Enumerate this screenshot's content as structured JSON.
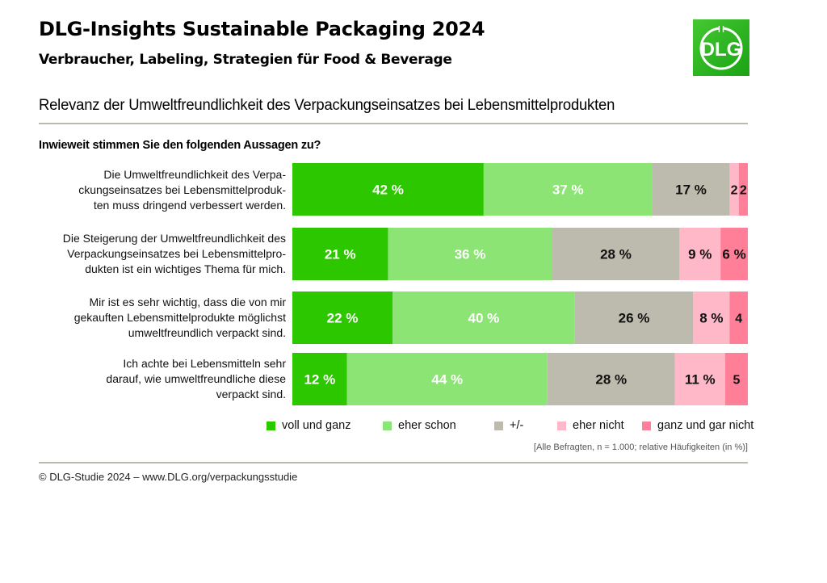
{
  "header": {
    "title": "DLG-Insights Sustainable Packaging 2024",
    "subtitle": "Verbraucher, Labeling, Strategien für Food & Beverage",
    "logo_text": "DLG"
  },
  "question": "Inwieweit stimmen Sie den folgenden Aussagen zu?",
  "note": "[Alle Befragten, n = 1.000; relative Häufigkeiten (in %)]",
  "footer": "© DLG-Studie 2024 – www.DLG.org/verpackungsstudie",
  "colors": {
    "voll_und_ganz": "#2dc700",
    "eher_schon": "#8be474",
    "neutral": "#bdbbad",
    "eher_nicht": "#ffb8c8",
    "ganz_und_gar_nicht": "#ff7f99",
    "logo": "#2db31e"
  },
  "rows": [
    {
      "label_lines": [
        "Die Umweltfreundlichkeit des Verpa-",
        "ckungseinsatzes bei Lebensmittelproduk-",
        "ten muss dringend verbessert werden."
      ]
    },
    {
      "label_lines": [
        "Die Steigerung der Umweltfreundlichkeit des",
        "Verpackungseinsatzes bei Lebensmittelpro-",
        "dukten ist ein wichtiges Thema für mich."
      ]
    },
    {
      "label_lines": [
        "Mir ist es sehr wichtig, dass die von mir",
        "gekauften Lebensmittelprodukte möglichst",
        "umweltfreundlich verpackt sind."
      ]
    },
    {
      "label_lines": [
        "Ich achte bei Lebensmitteln sehr",
        "darauf, wie umweltfreundliche diese",
        "verpackt sind."
      ]
    }
  ],
  "chart_data": {
    "type": "bar",
    "orientation": "horizontal-stacked-100",
    "title": "Relevanz der Umweltfreundlichkeit des Verpackungseinsatzes bei Lebensmittelprodukten",
    "xlabel": "",
    "ylabel": "",
    "xlim": [
      0,
      100
    ],
    "grid": false,
    "legend_position": "bottom",
    "categories": [
      "Die Umweltfreundlichkeit des Verpackungseinsatzes bei Lebensmittelprodukten muss dringend verbessert werden.",
      "Die Steigerung der Umweltfreundlichkeit des Verpackungseinsatzes bei Lebensmittelprodukten ist ein wichtiges Thema für mich.",
      "Mir ist es sehr wichtig, dass die von mir gekauften Lebensmittelprodukte möglichst umweltfreundlich verpackt sind.",
      "Ich achte bei Lebensmitteln sehr darauf, wie umweltfreundliche diese verpackt sind."
    ],
    "series": [
      {
        "name": "voll und ganz",
        "color": "#2dc700",
        "label_color": "#ffffff",
        "values": [
          42,
          21,
          22,
          12
        ],
        "data_labels": [
          "42 %",
          "21 %",
          "22 %",
          "12 %"
        ]
      },
      {
        "name": "eher schon",
        "color": "#8be474",
        "label_color": "#ffffff",
        "values": [
          37,
          36,
          40,
          44
        ],
        "data_labels": [
          "37 %",
          "36 %",
          "40 %",
          "44 %"
        ]
      },
      {
        "name": "+/-",
        "color": "#bdbbad",
        "label_color": "#111111",
        "values": [
          17,
          28,
          26,
          28
        ],
        "data_labels": [
          "17 %",
          "28 %",
          "26 %",
          "28 %"
        ]
      },
      {
        "name": "eher nicht",
        "color": "#ffb8c8",
        "label_color": "#111111",
        "values": [
          2,
          9,
          8,
          11
        ],
        "data_labels": [
          "2",
          "9 %",
          "8 %",
          "11 %"
        ]
      },
      {
        "name": "ganz und gar nicht",
        "color": "#ff7f99",
        "label_color": "#111111",
        "values": [
          2,
          6,
          4,
          5
        ],
        "data_labels": [
          "2",
          "6 %",
          "4",
          "5"
        ]
      }
    ]
  }
}
